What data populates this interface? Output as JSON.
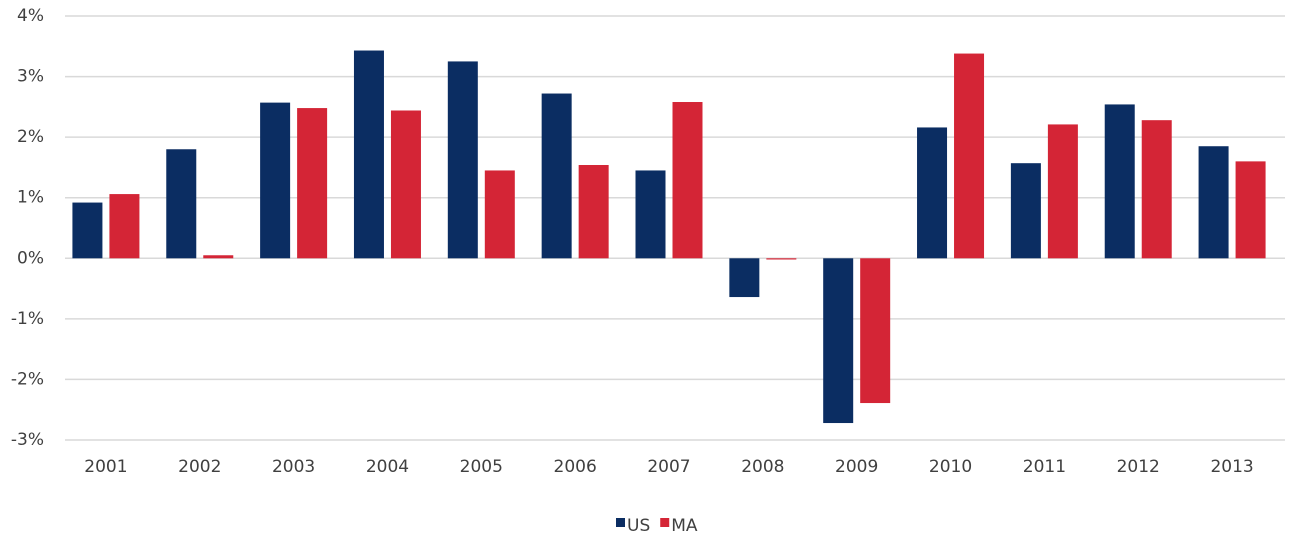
{
  "chart_data": {
    "type": "bar",
    "categories": [
      "2001",
      "2002",
      "2003",
      "2004",
      "2005",
      "2006",
      "2007",
      "2008",
      "2009",
      "2010",
      "2011",
      "2012",
      "2013"
    ],
    "series": [
      {
        "name": "US",
        "color": "#0b2d62",
        "values": [
          0.92,
          1.8,
          2.57,
          3.43,
          3.25,
          2.72,
          1.45,
          -0.64,
          -2.72,
          2.16,
          1.57,
          2.54,
          1.85
        ]
      },
      {
        "name": "MA",
        "color": "#d42536",
        "values": [
          1.06,
          0.05,
          2.48,
          2.44,
          1.45,
          1.54,
          2.58,
          -0.02,
          -2.39,
          3.38,
          2.21,
          2.28,
          1.6
        ]
      }
    ],
    "ylim": [
      -3,
      4
    ],
    "yticks": [
      {
        "value": -3,
        "label": "-3%"
      },
      {
        "value": -2,
        "label": "-2%"
      },
      {
        "value": -1,
        "label": "-1%"
      },
      {
        "value": 0,
        "label": "0%"
      },
      {
        "value": 1,
        "label": "1%"
      },
      {
        "value": 2,
        "label": "2%"
      },
      {
        "value": 3,
        "label": "3%"
      },
      {
        "value": 4,
        "label": "4%"
      }
    ],
    "grid": true,
    "legend": "bottom"
  }
}
